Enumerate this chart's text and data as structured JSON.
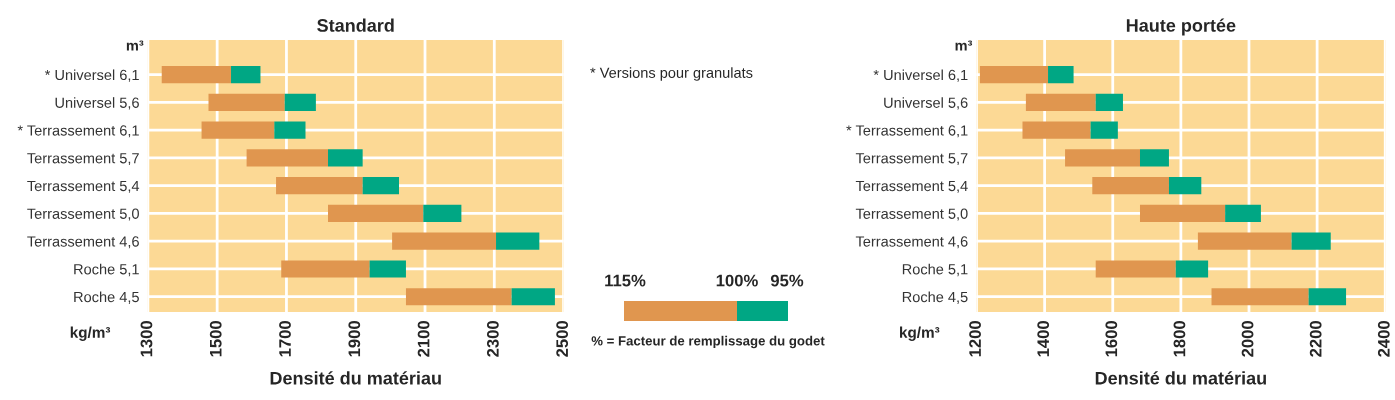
{
  "chart_data": [
    {
      "type": "bar",
      "orientation": "horizontal",
      "title": "Standard",
      "ylabel": "m³",
      "xlabel": "Densité du matériau",
      "categories": [
        "* Universel 6,1",
        "Universel 5,6",
        "* Terrassement 6,1",
        "Terrassement 5,7",
        "Terrassement 5,4",
        "Terrassement 5,0",
        "Terrassement 4,6",
        "Roche 5,1",
        "Roche 4,5"
      ],
      "series": [
        {
          "color": "#e0964f",
          "base": [
            1340,
            1475,
            1455,
            1585,
            1670,
            1820,
            2005,
            1685,
            2045
          ],
          "values": [
            200,
            220,
            210,
            235,
            250,
            275,
            300,
            255,
            305
          ]
        },
        {
          "color": "#00a784",
          "base": [
            1540,
            1695,
            1665,
            1820,
            1920,
            2095,
            2305,
            1940,
            2350
          ],
          "values": [
            85,
            90,
            90,
            100,
            105,
            110,
            125,
            105,
            125
          ]
        }
      ],
      "xlim": [
        1300,
        2500
      ],
      "xticks": [
        1300,
        1500,
        1700,
        1900,
        2100,
        2300,
        2500
      ],
      "grid": true,
      "annotations": [
        "kg/m³",
        "* Versions pour granulats",
        "115%",
        "100%",
        "95%",
        "% = Facteur de remplissage du godet"
      ]
    },
    {
      "type": "bar",
      "orientation": "horizontal",
      "title": "Haute portée",
      "ylabel": "m³",
      "xlabel": "Densité du matériau",
      "categories": [
        "* Universel 6,1",
        "Universel 5,6",
        "* Terrassement 6,1",
        "Terrassement 5,7",
        "Terrassement 5,4",
        "Terrassement 5,0",
        "Terrassement 4,6",
        "Roche 5,1",
        "Roche 4,5"
      ],
      "series": [
        {
          "color": "#e0964f",
          "base": [
            1210,
            1345,
            1335,
            1460,
            1540,
            1680,
            1850,
            1550,
            1890
          ],
          "values": [
            200,
            205,
            200,
            220,
            225,
            250,
            275,
            235,
            285
          ]
        },
        {
          "color": "#00a784",
          "base": [
            1410,
            1550,
            1535,
            1680,
            1765,
            1930,
            2125,
            1785,
            2175
          ],
          "values": [
            75,
            80,
            80,
            85,
            95,
            105,
            115,
            95,
            110
          ]
        }
      ],
      "xlim": [
        1200,
        2400
      ],
      "xticks": [
        1200,
        1400,
        1600,
        1800,
        2000,
        2200,
        2400
      ],
      "grid": true,
      "annotations": [
        "kg/m³"
      ]
    }
  ]
}
